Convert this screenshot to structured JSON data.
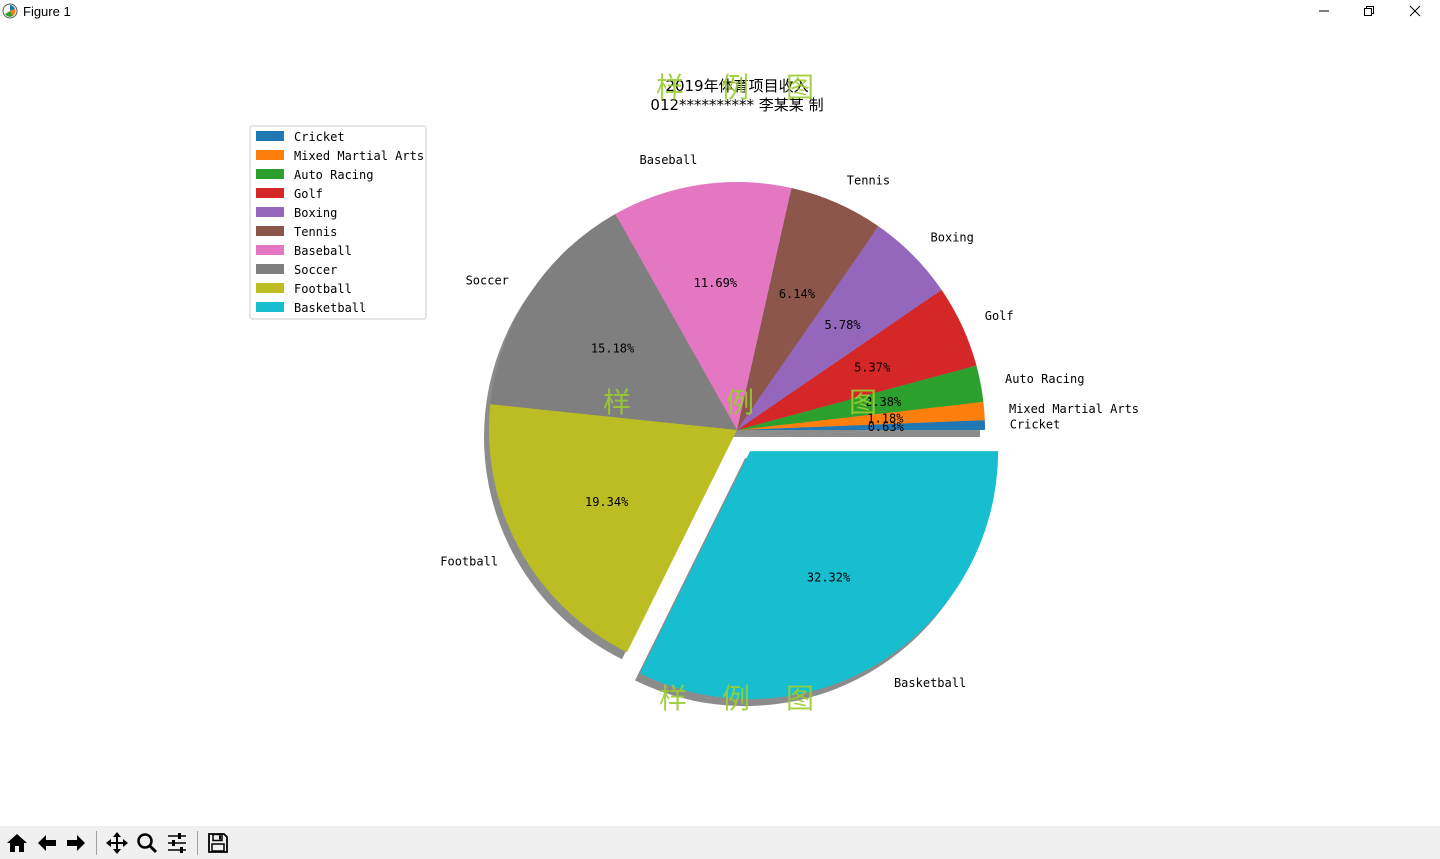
{
  "window": {
    "title": "Figure 1"
  },
  "chart_data": {
    "type": "pie",
    "title": "2019年体育项目收入",
    "subtitle": "012********** 李某某 制",
    "categories": [
      "Cricket",
      "Mixed Martial Arts",
      "Auto Racing",
      "Golf",
      "Boxing",
      "Tennis",
      "Baseball",
      "Soccer",
      "Football",
      "Basketball"
    ],
    "values": [
      0.63,
      1.18,
      2.38,
      5.37,
      5.78,
      6.14,
      11.69,
      15.18,
      19.34,
      32.32
    ],
    "value_labels": [
      "0.63%",
      "1.18%",
      "2.38%",
      "5.37%",
      "5.78%",
      "6.14%",
      "11.69%",
      "15.18%",
      "19.34%",
      "32.32%"
    ],
    "colors": [
      "#1f77b4",
      "#ff7f0e",
      "#2ca02c",
      "#d62728",
      "#9467bd",
      "#8c564b",
      "#e377c2",
      "#7f7f7f",
      "#bcbd22",
      "#17becf"
    ],
    "explode": [
      0,
      0,
      0,
      0,
      0,
      0,
      0,
      0,
      0,
      0.1
    ],
    "shadow": true,
    "start_angle": 0,
    "legend": {
      "placement": "upper-left",
      "entries": [
        "Cricket",
        "Mixed Martial Arts",
        "Auto Racing",
        "Golf",
        "Boxing",
        "Tennis",
        "Baseball",
        "Soccer",
        "Football",
        "Basketball"
      ]
    },
    "watermark": {
      "chars": [
        "样",
        "例",
        "图"
      ]
    }
  },
  "toolbar": {
    "buttons": [
      "home-icon",
      "back-icon",
      "forward-icon",
      "pan-icon",
      "zoom-icon",
      "configure-icon",
      "save-icon"
    ]
  }
}
